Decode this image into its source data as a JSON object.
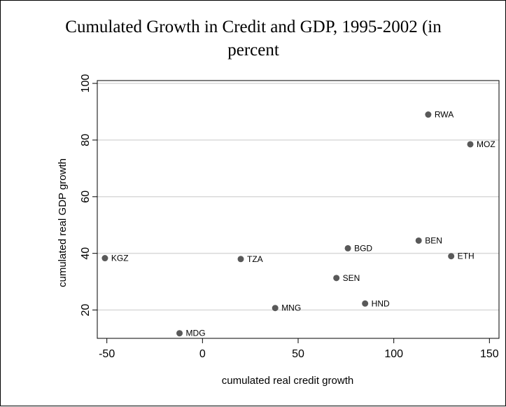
{
  "chart_data": {
    "type": "scatter",
    "title": "Cumulated Growth in Credit and GDP, 1995-2002 (in percent)",
    "title_lines": [
      "Cumulated Growth in Credit and GDP, 1995-2002 (in",
      "percent"
    ],
    "xlabel": "cumulated real credit growth",
    "ylabel": "cumulated real GDP growth",
    "xlim": [
      -55,
      155
    ],
    "ylim": [
      10,
      101
    ],
    "xticks": [
      -50,
      0,
      50,
      100,
      150
    ],
    "yticks": [
      20,
      40,
      60,
      80,
      100
    ],
    "grid": true,
    "grid_color": "#d9d9d9",
    "marker_color": "#595959",
    "points": [
      {
        "label": "RWA",
        "x": 118,
        "y": 89
      },
      {
        "label": "MOZ",
        "x": 140,
        "y": 78.5
      },
      {
        "label": "BEN",
        "x": 113,
        "y": 44.5
      },
      {
        "label": "ETH",
        "x": 130,
        "y": 39
      },
      {
        "label": "BGD",
        "x": 76,
        "y": 41.8
      },
      {
        "label": "KGZ",
        "x": -51,
        "y": 38.3
      },
      {
        "label": "TZA",
        "x": 20,
        "y": 38
      },
      {
        "label": "SEN",
        "x": 70,
        "y": 31.3
      },
      {
        "label": "HND",
        "x": 85,
        "y": 22.3
      },
      {
        "label": "MNG",
        "x": 38,
        "y": 20.7
      },
      {
        "label": "MDG",
        "x": -12,
        "y": 11.8
      }
    ]
  }
}
